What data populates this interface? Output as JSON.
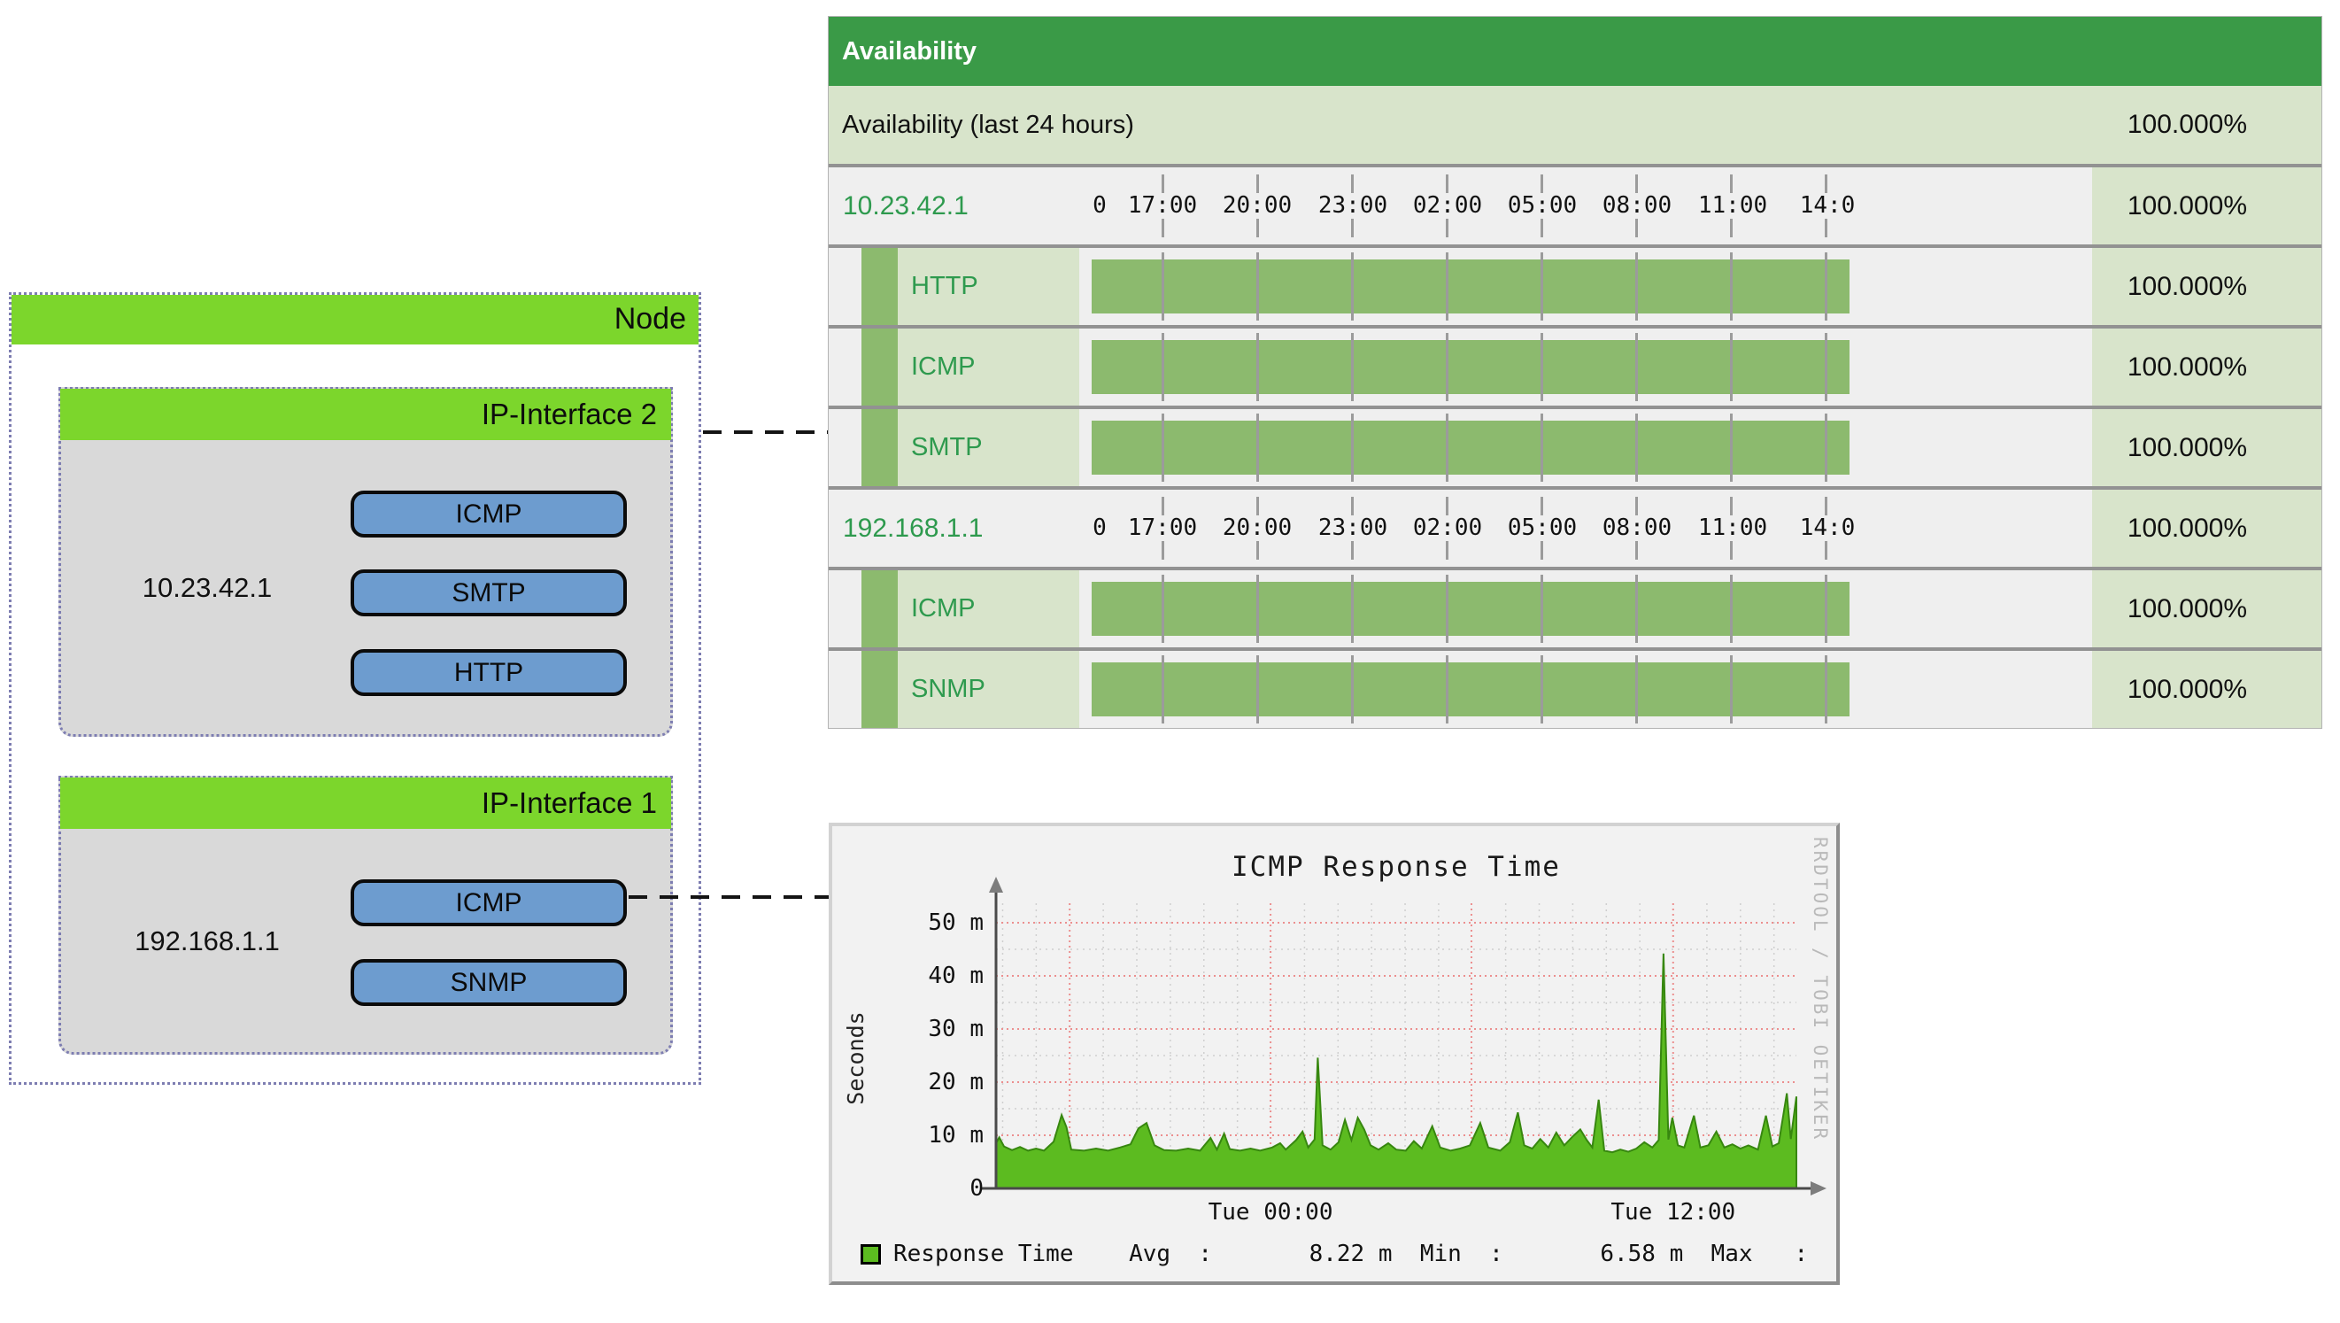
{
  "diagram": {
    "node_title": "Node",
    "header_color": "#7cd62c",
    "body_color": "#d9d9d9",
    "button_color": "#6d9ccf",
    "interfaces": [
      {
        "title": "IP-Interface 2",
        "ip": "10.23.42.1",
        "services": [
          "ICMP",
          "SMTP",
          "HTTP"
        ]
      },
      {
        "title": "IP-Interface 1",
        "ip": "192.168.1.1",
        "services": [
          "ICMP",
          "SNMP"
        ]
      }
    ]
  },
  "availability": {
    "title": "Availability",
    "header_color": "#3a9a47",
    "row_green": "#d8e4cb",
    "bar_green": "#8cba6e",
    "link_green": "#2e9a4e",
    "timeline_labels": [
      "0",
      "17:00",
      "20:00",
      "23:00",
      "02:00",
      "05:00",
      "08:00",
      "11:00",
      "14:0"
    ],
    "rows": [
      {
        "type": "summary",
        "label": "Availability (last 24 hours)",
        "value": "100.000%"
      },
      {
        "type": "ip",
        "label": "10.23.42.1",
        "value": "100.000%"
      },
      {
        "type": "service",
        "label": "HTTP",
        "value": "100.000%"
      },
      {
        "type": "service",
        "label": "ICMP",
        "value": "100.000%"
      },
      {
        "type": "service",
        "label": "SMTP",
        "value": "100.000%"
      },
      {
        "type": "ip",
        "label": "192.168.1.1",
        "value": "100.000%"
      },
      {
        "type": "service",
        "label": "ICMP",
        "value": "100.000%"
      },
      {
        "type": "service",
        "label": "SNMP",
        "value": "100.000%"
      }
    ]
  },
  "chart_data": {
    "type": "area",
    "title": "ICMP Response Time",
    "ylabel": "Seconds",
    "watermark": "RRDTOOL / TOBI OETIKER",
    "ylim": [
      0,
      52
    ],
    "y_ticks": [
      {
        "v": 0,
        "label": "0"
      },
      {
        "v": 10,
        "label": "10 m"
      },
      {
        "v": 20,
        "label": "20 m"
      },
      {
        "v": 30,
        "label": "30 m"
      },
      {
        "v": 40,
        "label": "40 m"
      },
      {
        "v": 50,
        "label": "50 m"
      }
    ],
    "x_ticks": [
      {
        "f": 0.343,
        "label": "Tue 00:00"
      },
      {
        "f": 0.846,
        "label": "Tue 12:00"
      }
    ],
    "grid": {
      "x_major": [
        0.092,
        0.343,
        0.594,
        0.846
      ],
      "x_minor_start": 0.0083,
      "x_minor_step": 0.0419,
      "y_major": [
        10,
        20,
        30,
        40,
        50
      ],
      "y_minor": [
        5,
        15,
        25,
        35,
        45
      ],
      "major_color": "#ec8f8f",
      "minor_color": "#cfcfcf"
    },
    "series": [
      {
        "name": "Response Time",
        "color": "#5cbb20",
        "stroke": "#37870f",
        "points": [
          [
            0,
            8.5
          ],
          [
            0.004,
            9.6
          ],
          [
            0.01,
            7.9
          ],
          [
            0.02,
            7.2
          ],
          [
            0.03,
            7.8
          ],
          [
            0.04,
            7.1
          ],
          [
            0.05,
            7.5
          ],
          [
            0.06,
            7.1
          ],
          [
            0.072,
            8.8
          ],
          [
            0.082,
            13.8
          ],
          [
            0.088,
            11.5
          ],
          [
            0.094,
            7.3
          ],
          [
            0.11,
            7.1
          ],
          [
            0.125,
            7.5
          ],
          [
            0.14,
            7.1
          ],
          [
            0.155,
            7.7
          ],
          [
            0.168,
            8.3
          ],
          [
            0.178,
            11.3
          ],
          [
            0.188,
            12.3
          ],
          [
            0.198,
            8.1
          ],
          [
            0.21,
            7.2
          ],
          [
            0.225,
            7.1
          ],
          [
            0.24,
            7.5
          ],
          [
            0.255,
            7.1
          ],
          [
            0.268,
            9.5
          ],
          [
            0.276,
            7.3
          ],
          [
            0.285,
            10.3
          ],
          [
            0.292,
            7.4
          ],
          [
            0.305,
            7.1
          ],
          [
            0.318,
            7.5
          ],
          [
            0.33,
            7.1
          ],
          [
            0.345,
            7.7
          ],
          [
            0.355,
            8.5
          ],
          [
            0.362,
            7.3
          ],
          [
            0.375,
            9.1
          ],
          [
            0.383,
            10.7
          ],
          [
            0.39,
            7.7
          ],
          [
            0.398,
            9.2
          ],
          [
            0.402,
            24.6
          ],
          [
            0.408,
            8.1
          ],
          [
            0.418,
            7.3
          ],
          [
            0.428,
            8.7
          ],
          [
            0.436,
            12.9
          ],
          [
            0.444,
            9.1
          ],
          [
            0.452,
            13.3
          ],
          [
            0.46,
            11.1
          ],
          [
            0.468,
            8.1
          ],
          [
            0.478,
            7.3
          ],
          [
            0.49,
            8.5
          ],
          [
            0.5,
            7.3
          ],
          [
            0.512,
            7.1
          ],
          [
            0.522,
            8.9
          ],
          [
            0.532,
            7.5
          ],
          [
            0.545,
            11.7
          ],
          [
            0.555,
            7.7
          ],
          [
            0.568,
            7.1
          ],
          [
            0.58,
            7.5
          ],
          [
            0.592,
            8.1
          ],
          [
            0.605,
            12.3
          ],
          [
            0.615,
            7.7
          ],
          [
            0.63,
            7.1
          ],
          [
            0.642,
            8.7
          ],
          [
            0.652,
            14.3
          ],
          [
            0.66,
            8.1
          ],
          [
            0.67,
            7.5
          ],
          [
            0.68,
            9.3
          ],
          [
            0.69,
            7.7
          ],
          [
            0.7,
            10.5
          ],
          [
            0.71,
            8.1
          ],
          [
            0.72,
            9.7
          ],
          [
            0.73,
            11.1
          ],
          [
            0.738,
            9.1
          ],
          [
            0.745,
            7.7
          ],
          [
            0.753,
            16.7
          ],
          [
            0.76,
            7.1
          ],
          [
            0.77,
            6.8
          ],
          [
            0.78,
            7.3
          ],
          [
            0.79,
            6.9
          ],
          [
            0.8,
            7.5
          ],
          [
            0.81,
            8.7
          ],
          [
            0.82,
            7.7
          ],
          [
            0.828,
            9.1
          ],
          [
            0.834,
            44.2
          ],
          [
            0.84,
            9.2
          ],
          [
            0.845,
            13.3
          ],
          [
            0.852,
            8.1
          ],
          [
            0.86,
            7.7
          ],
          [
            0.872,
            13.7
          ],
          [
            0.88,
            7.7
          ],
          [
            0.89,
            8.1
          ],
          [
            0.9,
            10.7
          ],
          [
            0.91,
            7.7
          ],
          [
            0.92,
            8.3
          ],
          [
            0.93,
            7.5
          ],
          [
            0.94,
            8.1
          ],
          [
            0.952,
            7.3
          ],
          [
            0.962,
            13.7
          ],
          [
            0.97,
            7.9
          ],
          [
            0.978,
            8.5
          ],
          [
            0.988,
            17.9
          ],
          [
            0.993,
            9.3
          ],
          [
            1,
            17.3
          ]
        ]
      }
    ],
    "legend": {
      "label": "Response Time",
      "avg": "8.22 m",
      "min": "6.58 m",
      "max": ""
    },
    "legend_line": "Response Time    Avg  :       8.22 m  Min  :       6.58 m  Max   :"
  }
}
